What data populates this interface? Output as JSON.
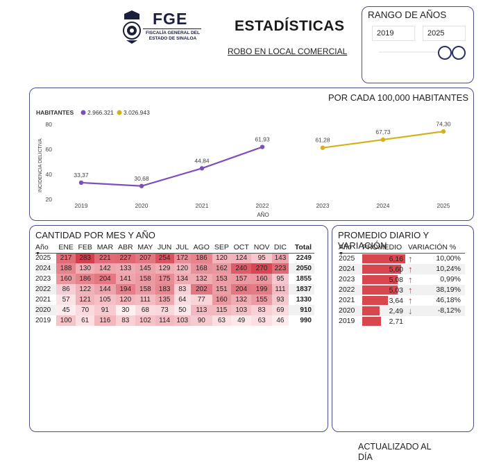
{
  "header": {
    "logo_text": "FGE",
    "logo_subtext": "FISCALÍA GENERAL DEL ESTADO DE SINALOA",
    "title": "ESTADÍSTICAS",
    "subtitle": "ROBO EN LOCAL COMERCIAL"
  },
  "range": {
    "label": "RANGO DE AÑOS",
    "from": "2019",
    "to": "2025"
  },
  "chart_data": {
    "type": "line",
    "title": "POR CADA 100,000 HABITANTES",
    "legend_title": "HABITANTES",
    "xlabel": "AÑO",
    "ylabel": "INCIDENCIA DELICTIVA",
    "ylim": [
      20,
      80
    ],
    "yticks": [
      "80",
      "60",
      "40",
      "20"
    ],
    "yticks_values": [
      80,
      60,
      40,
      20
    ],
    "categories": [
      "2019",
      "2020",
      "2021",
      "2022",
      "2023",
      "2024",
      "2025"
    ],
    "series": [
      {
        "name": "2.966.321",
        "color": "#7b4fbf",
        "x": [
          0,
          1,
          2,
          3
        ],
        "values": [
          33.37,
          30.68,
          44.84,
          61.93
        ],
        "labels": [
          "33,37",
          "30,68",
          "44,84",
          "61,93"
        ]
      },
      {
        "name": "3.026.943",
        "color": "#d4b01a",
        "x": [
          4,
          5,
          6
        ],
        "values": [
          61.28,
          67.73,
          74.3
        ],
        "labels": [
          "61,28",
          "67,73",
          "74,30"
        ]
      }
    ]
  },
  "monthly": {
    "title": "CANTIDAD POR MES Y AÑO",
    "headers": [
      "Año",
      "ENE",
      "FEB",
      "MAR",
      "ABR",
      "MAY",
      "JUN",
      "JUL",
      "AGO",
      "SEP",
      "OCT",
      "NOV",
      "DIC",
      "Total"
    ],
    "rows": [
      {
        "year": "2025",
        "values": [
          217,
          283,
          221,
          227,
          207,
          254,
          172,
          186,
          120,
          124,
          95,
          143
        ],
        "total": "2249"
      },
      {
        "year": "2024",
        "values": [
          188,
          130,
          142,
          133,
          145,
          129,
          120,
          168,
          162,
          240,
          270,
          223
        ],
        "total": "2050"
      },
      {
        "year": "2023",
        "values": [
          160,
          186,
          204,
          141,
          158,
          175,
          134,
          132,
          153,
          157,
          160,
          95
        ],
        "total": "1855"
      },
      {
        "year": "2022",
        "values": [
          86,
          122,
          144,
          194,
          158,
          183,
          83,
          202,
          151,
          204,
          199,
          111
        ],
        "total": "1837"
      },
      {
        "year": "2021",
        "values": [
          57,
          121,
          105,
          120,
          111,
          135,
          64,
          77,
          160,
          132,
          155,
          93
        ],
        "total": "1330"
      },
      {
        "year": "2020",
        "values": [
          45,
          70,
          91,
          30,
          68,
          73,
          50,
          113,
          115,
          103,
          83,
          69
        ],
        "total": "910"
      },
      {
        "year": "2019",
        "values": [
          100,
          61,
          116,
          83,
          102,
          114,
          103,
          90,
          63,
          49,
          63,
          46
        ],
        "total": "990"
      }
    ]
  },
  "daily": {
    "title": "PROMEDIO DIARIO Y VARIACIÓN",
    "headers": [
      "Año",
      "PROMEDIO",
      "VARIACIÓN %"
    ],
    "rows": [
      {
        "year": "2025",
        "avg": "6,16",
        "avg_value": 6.16,
        "trend": "up",
        "variation": "10,00%"
      },
      {
        "year": "2024",
        "avg": "5,60",
        "avg_value": 5.6,
        "trend": "up",
        "variation": "10,24%"
      },
      {
        "year": "2023",
        "avg": "5,08",
        "avg_value": 5.08,
        "trend": "up",
        "variation": "0,99%"
      },
      {
        "year": "2022",
        "avg": "5,03",
        "avg_value": 5.03,
        "trend": "up",
        "variation": "38,19%"
      },
      {
        "year": "2021",
        "avg": "3,64",
        "avg_value": 3.64,
        "trend": "up",
        "variation": "46,18%"
      },
      {
        "year": "2020",
        "avg": "2,49",
        "avg_value": 2.49,
        "trend": "down",
        "variation": "-8,12%"
      },
      {
        "year": "2019",
        "avg": "2,71",
        "avg_value": 2.71,
        "trend": "",
        "variation": ""
      }
    ],
    "colors": {
      "up": "#c0392b",
      "down": "#2e8b3d",
      "bar": "#d8464f"
    }
  },
  "footer": {
    "updated": "ACTUALIZADO AL DÍA"
  }
}
